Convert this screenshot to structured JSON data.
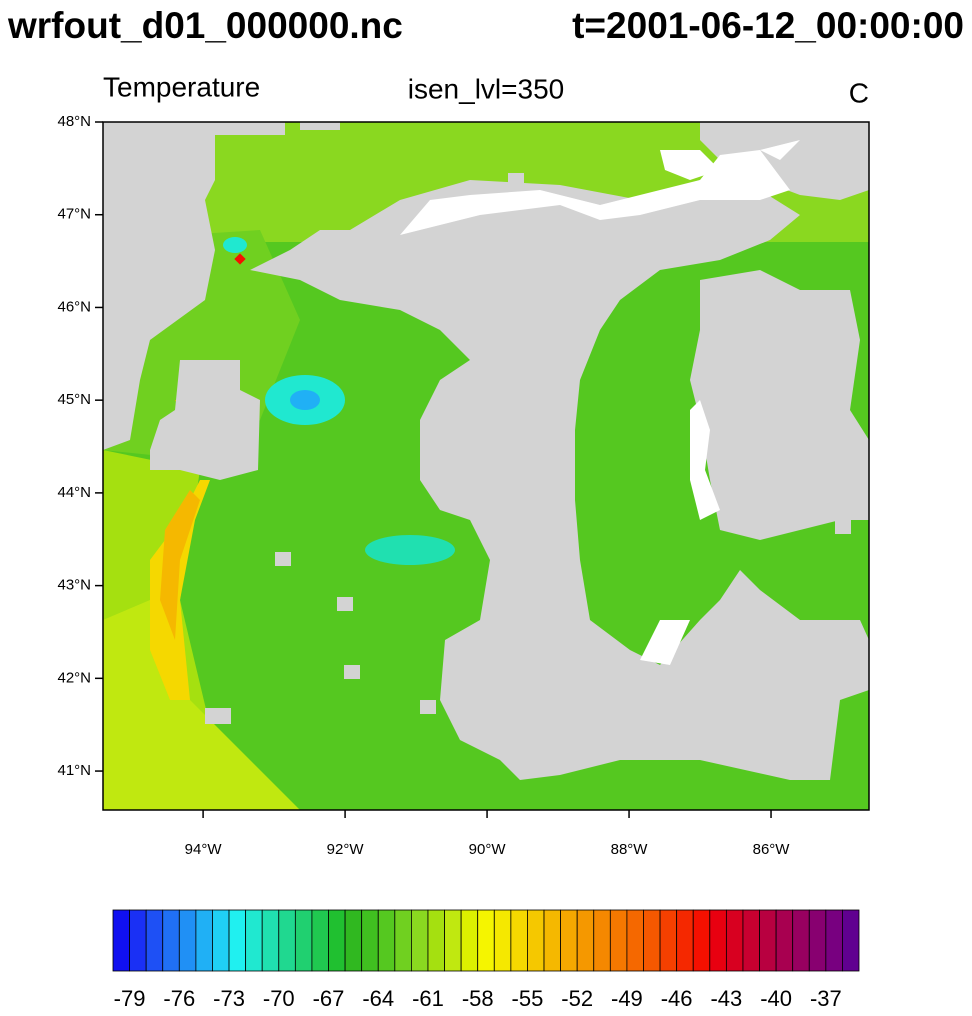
{
  "title": {
    "file": "wrfout_d01_000000.nc",
    "time": "t=2001-06-12_00:00:00"
  },
  "plot": {
    "left_string": "Temperature",
    "center_string": "isen_lvl=350",
    "right_string": "C",
    "xlim": [
      -95.41,
      -84.62
    ],
    "ylim": [
      40.58,
      48.0
    ],
    "yticks": [
      {
        "value": 41,
        "label": "41°N"
      },
      {
        "value": 42,
        "label": "42°N"
      },
      {
        "value": 43,
        "label": "43°N"
      },
      {
        "value": 44,
        "label": "44°N"
      },
      {
        "value": 45,
        "label": "45°N"
      },
      {
        "value": 46,
        "label": "46°N"
      },
      {
        "value": 47,
        "label": "47°N"
      },
      {
        "value": 48,
        "label": "48°N"
      }
    ],
    "xticks": [
      {
        "value": -94,
        "label": "94°W"
      },
      {
        "value": -92,
        "label": "92°W"
      },
      {
        "value": -90,
        "label": "90°W"
      },
      {
        "value": -88,
        "label": "88°W"
      },
      {
        "value": -86,
        "label": "86°W"
      }
    ]
  },
  "colorbar": {
    "ticks": [
      -79,
      -76,
      -73,
      -70,
      -67,
      -64,
      -61,
      -58,
      -55,
      -52,
      -49,
      -46,
      -43,
      -40,
      -37
    ],
    "colors": [
      "#1010f0",
      "#1a30f5",
      "#1e50f5",
      "#2070f5",
      "#2090f5",
      "#20b0f5",
      "#20d0f5",
      "#20f0f0",
      "#20e8d0",
      "#20e0b0",
      "#20d890",
      "#20d070",
      "#20c850",
      "#20c030",
      "#30b820",
      "#40c020",
      "#55c820",
      "#70d020",
      "#8ad820",
      "#a5e010",
      "#c0e810",
      "#dcf000",
      "#f5f500",
      "#f5e800",
      "#f5d800",
      "#f5c800",
      "#f5b800",
      "#f5a800",
      "#f59800",
      "#f58800",
      "#f57800",
      "#f56800",
      "#f55800",
      "#f54000",
      "#f52800",
      "#f51000",
      "#e80010",
      "#d80020",
      "#c80030",
      "#b80040",
      "#a80050",
      "#980060",
      "#880070",
      "#780080",
      "#600090"
    ]
  }
}
